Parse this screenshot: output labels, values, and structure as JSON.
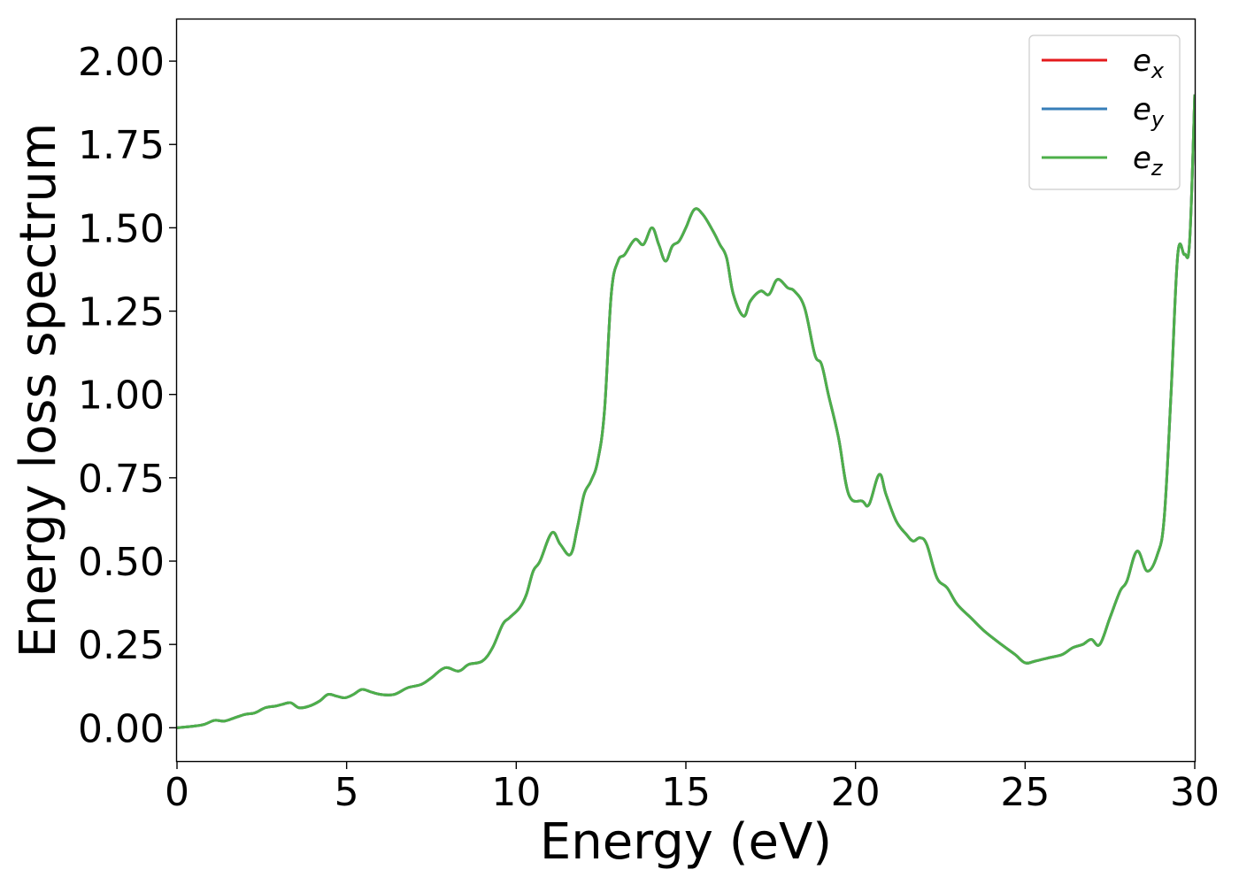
{
  "chart_data": {
    "type": "line",
    "xlabel": "Energy (eV)",
    "ylabel": "Energy loss spectrum",
    "xlim": [
      0,
      30
    ],
    "ylim": [
      -0.1,
      2.125
    ],
    "xticks": [
      0,
      5,
      10,
      15,
      20,
      25,
      30
    ],
    "xtick_labels": [
      "0",
      "5",
      "10",
      "15",
      "20",
      "25",
      "30"
    ],
    "yticks": [
      0,
      0.25,
      0.5,
      0.75,
      1.0,
      1.25,
      1.5,
      1.75,
      2.0
    ],
    "ytick_labels": [
      "0.00",
      "0.25",
      "0.50",
      "0.75",
      "1.00",
      "1.25",
      "1.50",
      "1.75",
      "2.00"
    ],
    "grid": false,
    "legend_position": "top-right",
    "series": [
      {
        "name": "e",
        "subscript": "x",
        "color": "#e41a1c"
      },
      {
        "name": "e",
        "subscript": "y",
        "color": "#377eb8"
      },
      {
        "name": "e",
        "subscript": "z",
        "color": "#4daf4a"
      }
    ],
    "x": [
      0,
      0.5,
      0.8,
      1.1,
      1.4,
      1.7,
      2.0,
      2.3,
      2.6,
      2.9,
      3.1,
      3.35,
      3.6,
      3.9,
      4.2,
      4.45,
      4.7,
      4.95,
      5.2,
      5.45,
      5.7,
      6.0,
      6.4,
      6.8,
      7.2,
      7.5,
      7.9,
      8.3,
      8.6,
      9.0,
      9.3,
      9.6,
      9.8,
      10.1,
      10.3,
      10.5,
      10.7,
      11.05,
      11.3,
      11.6,
      11.8,
      12.0,
      12.2,
      12.4,
      12.6,
      12.8,
      13.0,
      13.2,
      13.5,
      13.75,
      14.0,
      14.2,
      14.4,
      14.6,
      14.8,
      15.0,
      15.25,
      15.5,
      15.8,
      16.0,
      16.2,
      16.4,
      16.7,
      16.9,
      17.2,
      17.45,
      17.7,
      18.0,
      18.2,
      18.5,
      18.8,
      19.0,
      19.2,
      19.5,
      19.8,
      20.2,
      20.4,
      20.7,
      20.9,
      21.2,
      21.5,
      21.7,
      21.9,
      22.1,
      22.4,
      22.7,
      23.0,
      23.4,
      23.8,
      24.3,
      24.7,
      25.0,
      25.3,
      25.7,
      26.1,
      26.4,
      26.7,
      26.95,
      27.2,
      27.5,
      27.8,
      28.0,
      28.3,
      28.6,
      28.9,
      29.1,
      29.3,
      29.5,
      29.7,
      29.85,
      30.0
    ],
    "y": [
      0.0,
      0.005,
      0.01,
      0.022,
      0.02,
      0.03,
      0.04,
      0.045,
      0.06,
      0.065,
      0.07,
      0.075,
      0.06,
      0.065,
      0.08,
      0.1,
      0.095,
      0.09,
      0.1,
      0.115,
      0.108,
      0.1,
      0.1,
      0.12,
      0.13,
      0.15,
      0.18,
      0.17,
      0.19,
      0.2,
      0.24,
      0.31,
      0.33,
      0.36,
      0.4,
      0.47,
      0.5,
      0.585,
      0.55,
      0.52,
      0.6,
      0.7,
      0.74,
      0.8,
      0.95,
      1.3,
      1.4,
      1.42,
      1.465,
      1.45,
      1.5,
      1.45,
      1.4,
      1.445,
      1.46,
      1.5,
      1.555,
      1.54,
      1.49,
      1.45,
      1.41,
      1.3,
      1.235,
      1.28,
      1.31,
      1.3,
      1.345,
      1.32,
      1.31,
      1.26,
      1.12,
      1.09,
      1.0,
      0.87,
      0.7,
      0.68,
      0.67,
      0.76,
      0.7,
      0.62,
      0.58,
      0.56,
      0.57,
      0.55,
      0.45,
      0.42,
      0.37,
      0.33,
      0.29,
      0.25,
      0.22,
      0.195,
      0.2,
      0.21,
      0.22,
      0.24,
      0.25,
      0.265,
      0.25,
      0.33,
      0.41,
      0.44,
      0.53,
      0.47,
      0.52,
      0.63,
      1.0,
      1.42,
      1.42,
      1.46,
      1.9
    ]
  }
}
